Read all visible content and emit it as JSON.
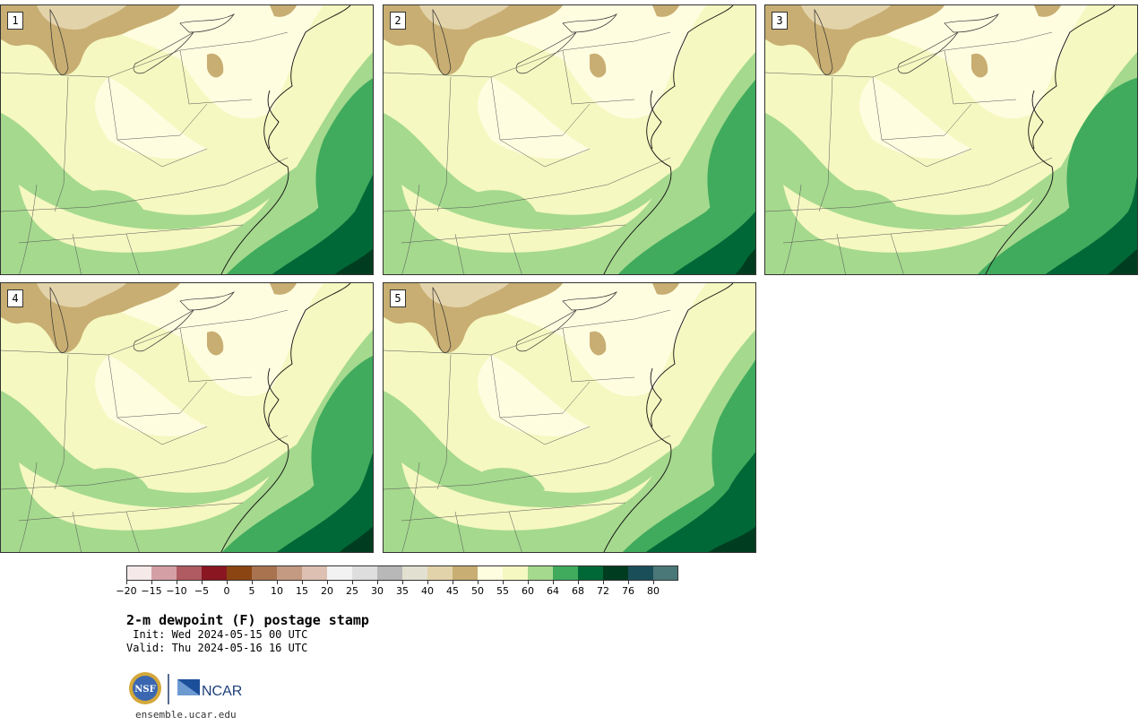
{
  "panels": [
    {
      "label": "1"
    },
    {
      "label": "2"
    },
    {
      "label": "3"
    },
    {
      "label": "4"
    },
    {
      "label": "5"
    }
  ],
  "colorbar": {
    "colors": [
      "#f5e9e9",
      "#d4a0a6",
      "#b05a62",
      "#8a1622",
      "#8b4513",
      "#a97350",
      "#c49a82",
      "#ddc0b2",
      "#f2f2f2",
      "#dedede",
      "#b8b8b8",
      "#e2e0d0",
      "#e3d3aa",
      "#c8ae72",
      "#fffde0",
      "#f5f8c0",
      "#a5d98e",
      "#40ab5d",
      "#006837",
      "#003d20",
      "#1a4f5a",
      "#4a7878"
    ],
    "tick_labels": [
      "−20",
      "−15",
      "−10",
      "−5",
      "0",
      "5",
      "10",
      "15",
      "20",
      "25",
      "30",
      "35",
      "40",
      "45",
      "50",
      "55",
      "60",
      "64",
      "68",
      "72",
      "76",
      "80"
    ]
  },
  "text": {
    "title": "2-m dewpoint (F) postage stamp",
    "init": " Init: Wed 2024-05-15 00 UTC",
    "valid": "Valid: Thu 2024-05-16 16 UTC",
    "logo_left": "NSF",
    "logo_right": "NCAR",
    "site": "ensemble.ucar.edu"
  },
  "map_colors": {
    "lake_tan": "#c8ae72",
    "lake_light": "#e3d3aa",
    "cream": "#fffde0",
    "pale_yellow": "#f5f8c0",
    "light_green": "#a5d98e",
    "green": "#40ab5d",
    "dark_green": "#006837",
    "darkest_green": "#003d20"
  }
}
